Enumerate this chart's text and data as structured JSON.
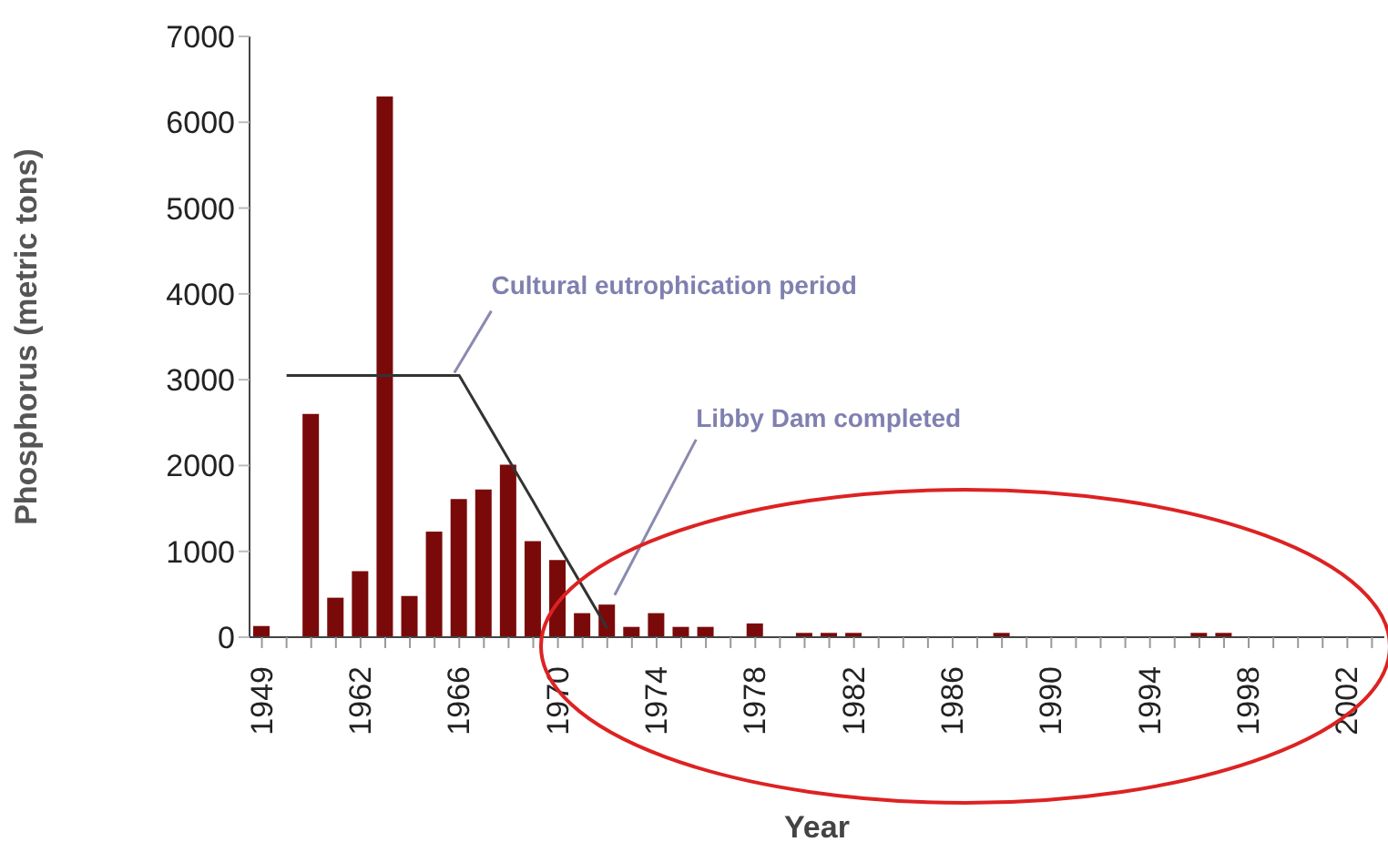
{
  "chart_data": {
    "type": "bar",
    "xlabel": "Year",
    "ylabel": "Phosphorus (metric tons)",
    "categories": [
      "1949",
      null,
      null,
      null,
      "1962",
      null,
      null,
      null,
      "1966",
      null,
      null,
      null,
      "1970",
      null,
      null,
      null,
      "1974",
      null,
      null,
      null,
      "1978",
      null,
      null,
      null,
      "1982",
      null,
      null,
      null,
      "1986",
      null,
      null,
      null,
      "1990",
      null,
      null,
      null,
      "1994",
      null,
      null,
      null,
      "1998",
      null,
      null,
      null,
      "2002",
      null
    ],
    "series": [
      {
        "color": "#7a0a0a",
        "values": [
          130,
          null,
          2600,
          460,
          770,
          6300,
          480,
          1230,
          1610,
          1720,
          2010,
          1120,
          900,
          280,
          380,
          120,
          280,
          120,
          120,
          null,
          160,
          null,
          50,
          50,
          50,
          null,
          null,
          null,
          null,
          null,
          50,
          null,
          null,
          null,
          null,
          null,
          null,
          null,
          50,
          50,
          null,
          null,
          null,
          null,
          null,
          null
        ]
      },
      {
        "type": "line",
        "color": "#333333",
        "values": [
          null,
          3050,
          3050,
          3050,
          3050,
          3050,
          3050,
          3050,
          3050,
          2560,
          2070,
          1580,
          1080,
          590,
          100,
          null,
          null,
          null,
          null,
          null,
          null,
          null,
          null,
          null,
          null,
          null,
          null,
          null,
          null,
          null,
          null,
          null,
          null,
          null,
          null,
          null,
          null,
          null,
          null,
          null,
          null,
          null,
          null,
          null,
          null,
          null
        ]
      }
    ],
    "ylim": [
      0,
      7000
    ],
    "yticks": [
      0,
      1000,
      2000,
      3000,
      4000,
      5000,
      6000,
      7000
    ],
    "annotations": [
      "Cultural eutrophication period",
      "Libby Dam completed"
    ]
  }
}
